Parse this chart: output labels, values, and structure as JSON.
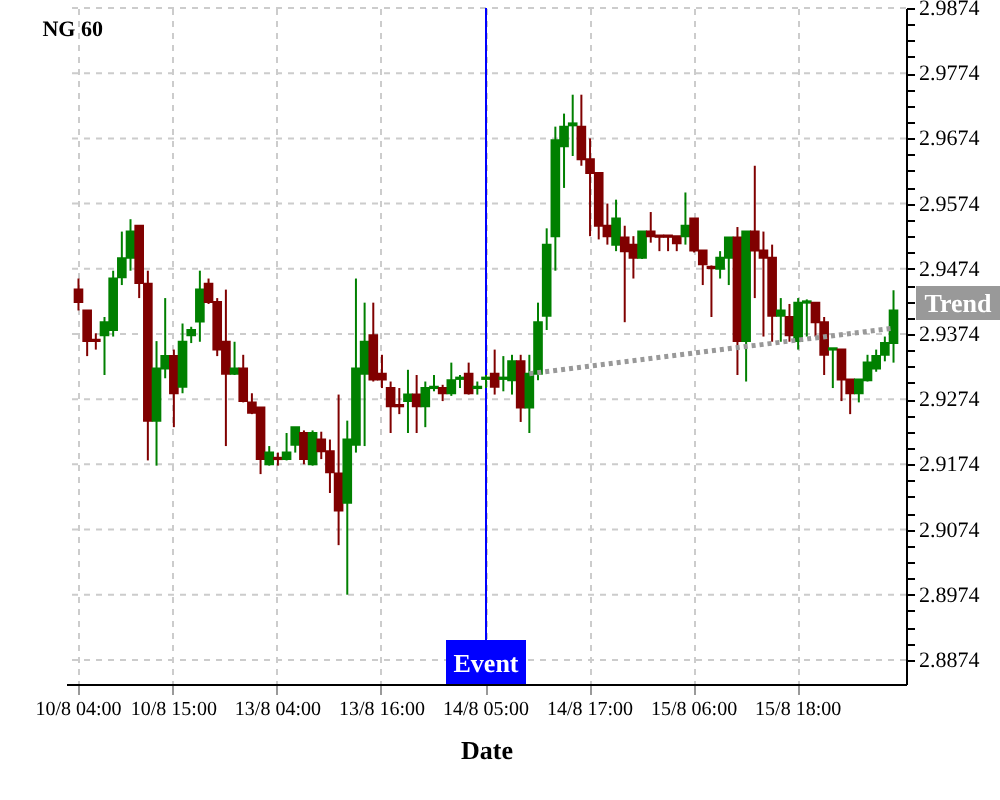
{
  "chart_data": {
    "type": "candlestick",
    "title": "NG 60",
    "xlabel": "Date",
    "categories": [
      "10/8 04:00",
      null,
      null,
      null,
      null,
      null,
      null,
      null,
      null,
      null,
      null,
      "10/8 15:00",
      null,
      null,
      null,
      null,
      null,
      null,
      null,
      null,
      null,
      null,
      null,
      "13/8 04:00",
      null,
      null,
      null,
      null,
      null,
      null,
      null,
      null,
      null,
      null,
      null,
      "13/8 16:00",
      null,
      null,
      null,
      null,
      null,
      null,
      null,
      null,
      null,
      null,
      null,
      "14/8 05:00",
      null,
      null,
      null,
      null,
      null,
      null,
      null,
      null,
      null,
      null,
      null,
      "14/8 17:00",
      null,
      null,
      null,
      null,
      null,
      null,
      null,
      null,
      null,
      null,
      null,
      "15/8 06:00",
      null,
      null,
      null,
      null,
      null,
      null,
      null,
      null,
      null,
      null,
      null,
      "15/8 18:00",
      null,
      null,
      null,
      null,
      null,
      null,
      null,
      null,
      null,
      null,
      null
    ],
    "ohlc": [
      [
        2.9442,
        2.9459,
        2.941,
        2.9423
      ],
      [
        2.941,
        2.941,
        2.934,
        2.9363
      ],
      [
        2.9365,
        2.9375,
        2.935,
        2.9363
      ],
      [
        2.9372,
        2.94,
        2.9311,
        2.9392
      ],
      [
        2.938,
        2.9471,
        2.937,
        2.9459
      ],
      [
        2.9461,
        2.9531,
        2.9449,
        2.949
      ],
      [
        2.9491,
        2.955,
        2.9471,
        2.9531
      ],
      [
        2.954,
        2.954,
        2.9429,
        2.9452
      ],
      [
        2.9451,
        2.9471,
        2.918,
        2.9241
      ],
      [
        2.9241,
        2.9363,
        2.9172,
        2.9321
      ],
      [
        2.9321,
        2.9429,
        2.9306,
        2.934
      ],
      [
        2.934,
        2.935,
        2.9231,
        2.9283
      ],
      [
        2.9293,
        2.939,
        2.9283,
        2.9362
      ],
      [
        2.9372,
        2.9385,
        2.936,
        2.938
      ],
      [
        2.9393,
        2.9471,
        2.9362,
        2.9442
      ],
      [
        2.9451,
        2.9459,
        2.942,
        2.9423
      ],
      [
        2.9423,
        2.9429,
        2.934,
        2.935
      ],
      [
        2.9362,
        2.9442,
        2.9202,
        2.9313
      ],
      [
        2.9313,
        2.9362,
        2.9311,
        2.9321
      ],
      [
        2.9321,
        2.9342,
        2.9269,
        2.9271
      ],
      [
        2.9269,
        2.9283,
        2.9251,
        2.9253
      ],
      [
        2.9261,
        2.9261,
        2.9159,
        2.9182
      ],
      [
        2.9174,
        2.9202,
        2.9172,
        2.9192
      ],
      [
        2.9184,
        2.9192,
        2.9172,
        2.9182
      ],
      [
        2.9182,
        2.9222,
        2.918,
        2.9192
      ],
      [
        2.9204,
        2.9231,
        2.9192,
        2.9231
      ],
      [
        2.9222,
        2.9226,
        2.9174,
        2.9182
      ],
      [
        2.9174,
        2.9226,
        2.9172,
        2.9222
      ],
      [
        2.9212,
        2.9224,
        2.9182,
        2.9194
      ],
      [
        2.9194,
        2.9212,
        2.913,
        2.9162
      ],
      [
        2.916,
        2.9281,
        2.905,
        2.9103
      ],
      [
        2.9115,
        2.9241,
        2.8974,
        2.9212
      ],
      [
        2.9204,
        2.9459,
        2.9192,
        2.9321
      ],
      [
        2.9313,
        2.9422,
        2.9202,
        2.9362
      ],
      [
        2.9372,
        2.9422,
        2.9301,
        2.9304
      ],
      [
        2.9313,
        2.9342,
        2.9291,
        2.9304
      ],
      [
        2.9291,
        2.9301,
        2.9222,
        2.9263
      ],
      [
        2.9265,
        2.9291,
        2.9251,
        2.9263
      ],
      [
        2.9271,
        2.9319,
        2.9222,
        2.9281
      ],
      [
        2.9281,
        2.9311,
        2.9222,
        2.9263
      ],
      [
        2.9263,
        2.9301,
        2.9231,
        2.9291
      ],
      [
        2.9291,
        2.9311,
        2.9286,
        2.9293
      ],
      [
        2.9291,
        2.9296,
        2.9271,
        2.9283
      ],
      [
        2.9283,
        2.933,
        2.9279,
        2.9303
      ],
      [
        2.9305,
        2.9311,
        2.9291,
        2.9307
      ],
      [
        2.9313,
        2.933,
        2.9281,
        2.9283
      ],
      [
        2.9291,
        2.9301,
        2.9281,
        2.9293
      ],
      [
        2.9305,
        2.9311,
        2.9291,
        2.9307
      ],
      [
        2.9313,
        2.935,
        2.9281,
        2.9293
      ],
      [
        2.9305,
        2.934,
        2.9286,
        2.9307
      ],
      [
        2.9303,
        2.9342,
        2.9281,
        2.9332
      ],
      [
        2.9332,
        2.9342,
        2.9239,
        2.9261
      ],
      [
        2.9261,
        2.9342,
        2.9222,
        2.9313
      ],
      [
        2.9313,
        2.9422,
        2.9303,
        2.9392
      ],
      [
        2.9402,
        2.9536,
        2.938,
        2.9511
      ],
      [
        2.9524,
        2.9692,
        2.9471,
        2.9671
      ],
      [
        2.9662,
        2.9712,
        2.9598,
        2.9692
      ],
      [
        2.9694,
        2.9741,
        2.9647,
        2.9697
      ],
      [
        2.9692,
        2.9741,
        2.9632,
        2.9642
      ],
      [
        2.9642,
        2.9674,
        2.9524,
        2.9621
      ],
      [
        2.9621,
        2.9621,
        2.9519,
        2.954
      ],
      [
        2.954,
        2.9574,
        2.9511,
        2.9524
      ],
      [
        2.9511,
        2.958,
        2.9501,
        2.9551
      ],
      [
        2.9522,
        2.954,
        2.9392,
        2.9501
      ],
      [
        2.9511,
        2.9524,
        2.9459,
        2.9491
      ],
      [
        2.9491,
        2.9531,
        2.9489,
        2.9531
      ],
      [
        2.9531,
        2.9561,
        2.9514,
        2.9524
      ],
      [
        2.9525,
        2.9525,
        2.9501,
        2.9523
      ],
      [
        2.9525,
        2.9525,
        2.9501,
        2.9523
      ],
      [
        2.9524,
        2.9524,
        2.9501,
        2.9513
      ],
      [
        2.9524,
        2.9591,
        2.9511,
        2.954
      ],
      [
        2.9551,
        2.9551,
        2.9499,
        2.9502
      ],
      [
        2.9502,
        2.9502,
        2.9449,
        2.9481
      ],
      [
        2.9477,
        2.9479,
        2.94,
        2.9475
      ],
      [
        2.9474,
        2.9501,
        2.9459,
        2.9491
      ],
      [
        2.9491,
        2.9522,
        2.9449,
        2.9522
      ],
      [
        2.9522,
        2.9538,
        2.9311,
        2.9363
      ],
      [
        2.9363,
        2.9531,
        2.9301,
        2.9531
      ],
      [
        2.9531,
        2.9632,
        2.9429,
        2.9502
      ],
      [
        2.9502,
        2.9531,
        2.937,
        2.9491
      ],
      [
        2.9491,
        2.9511,
        2.9362,
        2.9402
      ],
      [
        2.9402,
        2.9429,
        2.9362,
        2.941
      ],
      [
        2.94,
        2.942,
        2.9362,
        2.9372
      ],
      [
        2.9363,
        2.9429,
        2.935,
        2.9422
      ],
      [
        2.9422,
        2.9427,
        2.937,
        2.9424
      ],
      [
        2.9422,
        2.9422,
        2.937,
        2.9392
      ],
      [
        2.9392,
        2.94,
        2.9311,
        2.9342
      ],
      [
        2.935,
        2.9352,
        2.9291,
        2.9352
      ],
      [
        2.935,
        2.935,
        2.9271,
        2.9304
      ],
      [
        2.9304,
        2.9304,
        2.9251,
        2.9283
      ],
      [
        2.9283,
        2.9304,
        2.9269,
        2.9304
      ],
      [
        2.9303,
        2.9342,
        2.9301,
        2.933
      ],
      [
        2.9321,
        2.935,
        2.9316,
        2.934
      ],
      [
        2.9342,
        2.937,
        2.9332,
        2.936
      ],
      [
        2.936,
        2.9441,
        2.933,
        2.941
      ]
    ],
    "colors": [
      "#800000",
      "#800000",
      "#800000",
      "#008000",
      "#008000",
      "#008000",
      "#008000",
      "#800000",
      "#800000",
      "#008000",
      "#008000",
      "#800000",
      "#008000",
      "#008000",
      "#008000",
      "#800000",
      "#800000",
      "#800000",
      "#008000",
      "#800000",
      "#800000",
      "#800000",
      "#008000",
      "#800000",
      "#008000",
      "#008000",
      "#800000",
      "#008000",
      "#800000",
      "#800000",
      "#800000",
      "#008000",
      "#008000",
      "#008000",
      "#800000",
      "#800000",
      "#800000",
      "#800000",
      "#008000",
      "#800000",
      "#008000",
      "#008000",
      "#800000",
      "#008000",
      "#008000",
      "#800000",
      "#008000",
      "#008000",
      "#800000",
      "#008000",
      "#008000",
      "#800000",
      "#008000",
      "#008000",
      "#008000",
      "#008000",
      "#008000",
      "#008000",
      "#800000",
      "#800000",
      "#800000",
      "#800000",
      "#008000",
      "#800000",
      "#800000",
      "#008000",
      "#800000",
      "#800000",
      "#800000",
      "#800000",
      "#008000",
      "#800000",
      "#800000",
      "#800000",
      "#008000",
      "#008000",
      "#800000",
      "#008000",
      "#800000",
      "#800000",
      "#800000",
      "#008000",
      "#800000",
      "#008000",
      "#008000",
      "#800000",
      "#800000",
      "#008000",
      "#800000",
      "#800000",
      "#008000",
      "#008000",
      "#008000",
      "#008000",
      "#008000"
    ],
    "series": [
      {
        "name": "Trend",
        "type": "line",
        "color": "#999999",
        "line_style": "dotted",
        "marker": "none",
        "values": [
          null,
          null,
          null,
          null,
          null,
          null,
          null,
          null,
          null,
          null,
          null,
          null,
          null,
          null,
          null,
          null,
          null,
          null,
          null,
          null,
          null,
          null,
          null,
          null,
          null,
          null,
          null,
          null,
          null,
          null,
          null,
          null,
          null,
          null,
          null,
          null,
          null,
          null,
          null,
          null,
          null,
          null,
          null,
          null,
          null,
          null,
          null,
          null,
          null,
          null,
          null,
          null,
          2.9313,
          null,
          null,
          null,
          null,
          null,
          null,
          null,
          null,
          null,
          null,
          null,
          null,
          null,
          null,
          null,
          null,
          null,
          null,
          null,
          null,
          null,
          null,
          null,
          null,
          null,
          null,
          null,
          null,
          null,
          null,
          null,
          null,
          null,
          null,
          null,
          null,
          null,
          null,
          null,
          null,
          null,
          2.9383
        ]
      }
    ],
    "ref_lines": [
      {
        "axis": "x",
        "value": "14/8 05:00",
        "label": "Event",
        "color": "#0000ff"
      }
    ],
    "ylim": [
      2.8837,
      2.9874
    ],
    "yticks": [
      2.8874,
      {
        "value": 2.8899,
        "label": null
      },
      {
        "value": 2.8924,
        "label": null
      },
      {
        "value": 2.8949,
        "label": null
      },
      2.8974,
      {
        "value": 2.8999,
        "label": null
      },
      {
        "value": 2.9024,
        "label": null
      },
      {
        "value": 2.9049,
        "label": null
      },
      2.9074,
      {
        "value": 2.9099,
        "label": null
      },
      {
        "value": 2.9124,
        "label": null
      },
      {
        "value": 2.9149,
        "label": null
      },
      2.9174,
      {
        "value": 2.9199,
        "label": null
      },
      {
        "value": 2.9224,
        "label": null
      },
      {
        "value": 2.9249,
        "label": null
      },
      2.9274,
      {
        "value": 2.9299,
        "label": null
      },
      {
        "value": 2.9324,
        "label": null
      },
      {
        "value": 2.9349,
        "label": null
      },
      2.9374,
      {
        "value": 2.9399,
        "label": null
      },
      {
        "value": 2.9424,
        "label": null
      },
      {
        "value": 2.9449,
        "label": null
      },
      2.9474,
      {
        "value": 2.9499,
        "label": null
      },
      {
        "value": 2.9524,
        "label": null
      },
      {
        "value": 2.9549,
        "label": null
      },
      2.9574,
      {
        "value": 2.9599,
        "label": null
      },
      {
        "value": 2.9624,
        "label": null
      },
      {
        "value": 2.9649,
        "label": null
      },
      2.9674,
      {
        "value": 2.9699,
        "label": null
      },
      {
        "value": 2.9724,
        "label": null
      },
      {
        "value": 2.9749,
        "label": null
      },
      2.9774,
      {
        "value": 2.9799,
        "label": null
      },
      {
        "value": 2.9824,
        "label": null
      },
      {
        "value": 2.9849,
        "label": null
      },
      2.9874
    ],
    "grid": true
  }
}
